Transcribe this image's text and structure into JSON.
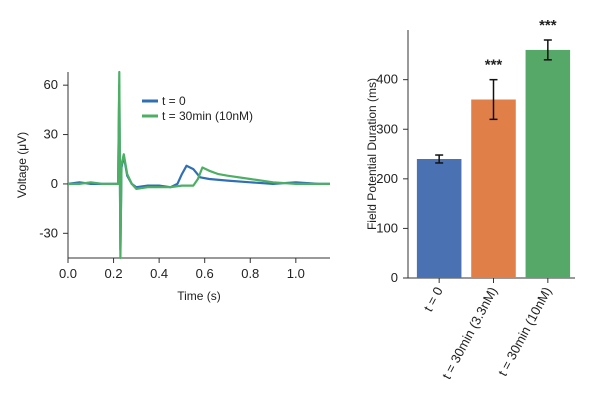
{
  "chart_data": [
    {
      "type": "line",
      "xlabel": "Time (s)",
      "ylabel": "Voltage (μV)",
      "xlim": [
        0.0,
        1.15
      ],
      "ylim": [
        -45,
        68
      ],
      "xticks": [
        0.0,
        0.2,
        0.4,
        0.6,
        0.8,
        1.0
      ],
      "xtick_labels": [
        "0.0",
        "0.2",
        "0.4",
        "0.6",
        "0.8",
        "1.0"
      ],
      "yticks": [
        60,
        30,
        0,
        -30
      ],
      "ytick_labels": [
        "60",
        "30",
        "0",
        "-30"
      ],
      "legend_position": "top-right",
      "series": [
        {
          "name": "t = 0",
          "color": "#2f6fb5",
          "points": [
            [
              0.0,
              0
            ],
            [
              0.05,
              1
            ],
            [
              0.1,
              0
            ],
            [
              0.15,
              0
            ],
            [
              0.2,
              0
            ],
            [
              0.22,
              0
            ],
            [
              0.225,
              60
            ],
            [
              0.23,
              -40
            ],
            [
              0.235,
              10
            ],
            [
              0.245,
              17
            ],
            [
              0.26,
              5
            ],
            [
              0.28,
              0
            ],
            [
              0.3,
              -2
            ],
            [
              0.35,
              -1
            ],
            [
              0.4,
              -1
            ],
            [
              0.45,
              -2
            ],
            [
              0.48,
              0
            ],
            [
              0.5,
              6
            ],
            [
              0.52,
              11
            ],
            [
              0.55,
              9
            ],
            [
              0.58,
              4
            ],
            [
              0.62,
              3
            ],
            [
              0.7,
              2
            ],
            [
              0.8,
              1
            ],
            [
              0.9,
              0
            ],
            [
              1.0,
              1
            ],
            [
              1.1,
              0
            ],
            [
              1.15,
              0
            ]
          ]
        },
        {
          "name": "t = 30min (10nM)",
          "color": "#4caf63",
          "points": [
            [
              0.0,
              0
            ],
            [
              0.05,
              0
            ],
            [
              0.1,
              1
            ],
            [
              0.15,
              0
            ],
            [
              0.2,
              0
            ],
            [
              0.22,
              0
            ],
            [
              0.225,
              68
            ],
            [
              0.23,
              -45
            ],
            [
              0.235,
              12
            ],
            [
              0.245,
              18
            ],
            [
              0.26,
              6
            ],
            [
              0.28,
              0
            ],
            [
              0.3,
              -3
            ],
            [
              0.35,
              -2
            ],
            [
              0.4,
              -2
            ],
            [
              0.45,
              -2
            ],
            [
              0.5,
              -1
            ],
            [
              0.55,
              -1
            ],
            [
              0.57,
              3
            ],
            [
              0.59,
              10
            ],
            [
              0.62,
              8
            ],
            [
              0.66,
              6
            ],
            [
              0.7,
              5
            ],
            [
              0.8,
              3
            ],
            [
              0.9,
              1
            ],
            [
              1.0,
              0
            ],
            [
              1.1,
              0
            ],
            [
              1.15,
              0
            ]
          ]
        }
      ]
    },
    {
      "type": "bar",
      "ylabel": "Field Potential Duration (ms)",
      "ylim": [
        0,
        480
      ],
      "yticks": [
        0,
        100,
        200,
        300,
        400
      ],
      "ytick_labels": [
        "0",
        "100",
        "200",
        "300",
        "400"
      ],
      "categories": [
        "t = 0",
        "t = 30min (3.3nM)",
        "t = 30min (10nM)"
      ],
      "values": [
        240,
        360,
        460
      ],
      "errors": [
        8,
        40,
        20
      ],
      "colors": [
        "#4a72b2",
        "#e08048",
        "#55a868"
      ],
      "annotations": [
        "",
        "***",
        "***"
      ]
    }
  ]
}
